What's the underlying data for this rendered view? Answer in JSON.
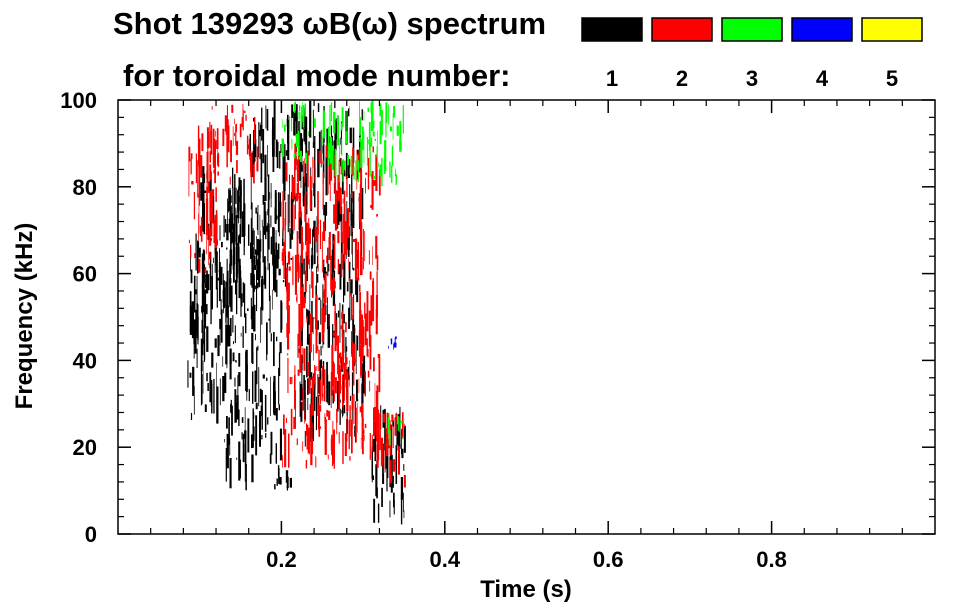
{
  "chart_data": {
    "type": "heatmap",
    "title": "Shot 139293 ωB(ω) spectrum",
    "subtitle": "for toroidal mode number:",
    "xlabel": "Time (s)",
    "ylabel": "Frequency (kHz)",
    "xlim": [
      0.0,
      1.0
    ],
    "ylim": [
      0,
      100
    ],
    "x_ticks": [
      0.2,
      0.4,
      0.6,
      0.8
    ],
    "x_tick_labels": [
      "0.2",
      "0.4",
      "0.6",
      "0.8"
    ],
    "y_ticks": [
      0,
      20,
      40,
      60,
      80,
      100
    ],
    "y_tick_labels": [
      "0",
      "20",
      "40",
      "60",
      "80",
      "100"
    ],
    "grid": false,
    "legend_position": "top-right",
    "legend": [
      {
        "label": "1",
        "color": "#000000"
      },
      {
        "label": "2",
        "color": "#ff0000"
      },
      {
        "label": "3",
        "color": "#00ff00"
      },
      {
        "label": "4",
        "color": "#0000ff"
      },
      {
        "label": "5",
        "color": "#ffff00"
      }
    ],
    "series": [
      {
        "mode": "1",
        "color": "#000000",
        "regions": [
          {
            "t": [
              0.085,
              0.13
            ],
            "f": [
              25,
              70
            ]
          },
          {
            "t": [
              0.1,
              0.16
            ],
            "f": [
              50,
              85
            ]
          },
          {
            "t": [
              0.13,
              0.2
            ],
            "f": [
              10,
              80
            ]
          },
          {
            "t": [
              0.16,
              0.23
            ],
            "f": [
              55,
              100
            ]
          },
          {
            "t": [
              0.19,
              0.22
            ],
            "f": [
              10,
              17
            ]
          },
          {
            "t": [
              0.22,
              0.3
            ],
            "f": [
              20,
              100
            ]
          },
          {
            "t": [
              0.31,
              0.35
            ],
            "f": [
              2,
              30
            ]
          }
        ]
      },
      {
        "mode": "2",
        "color": "#ff0000",
        "regions": [
          {
            "t": [
              0.085,
              0.12
            ],
            "f": [
              60,
              95
            ]
          },
          {
            "t": [
              0.11,
              0.17
            ],
            "f": [
              80,
              100
            ]
          },
          {
            "t": [
              0.2,
              0.32
            ],
            "f": [
              15,
              90
            ]
          },
          {
            "t": [
              0.31,
              0.35
            ],
            "f": [
              10,
              30
            ]
          }
        ]
      },
      {
        "mode": "3",
        "color": "#00ff00",
        "regions": [
          {
            "t": [
              0.2,
              0.24
            ],
            "f": [
              85,
              100
            ]
          },
          {
            "t": [
              0.25,
              0.35
            ],
            "f": [
              80,
              100
            ]
          },
          {
            "t": [
              0.33,
              0.35
            ],
            "f": [
              20,
              30
            ]
          }
        ]
      },
      {
        "mode": "4",
        "color": "#0000ff",
        "regions": [
          {
            "t": [
              0.33,
              0.34
            ],
            "f": [
              42,
              46
            ]
          }
        ]
      },
      {
        "mode": "5",
        "color": "#ffff00",
        "regions": []
      }
    ]
  }
}
